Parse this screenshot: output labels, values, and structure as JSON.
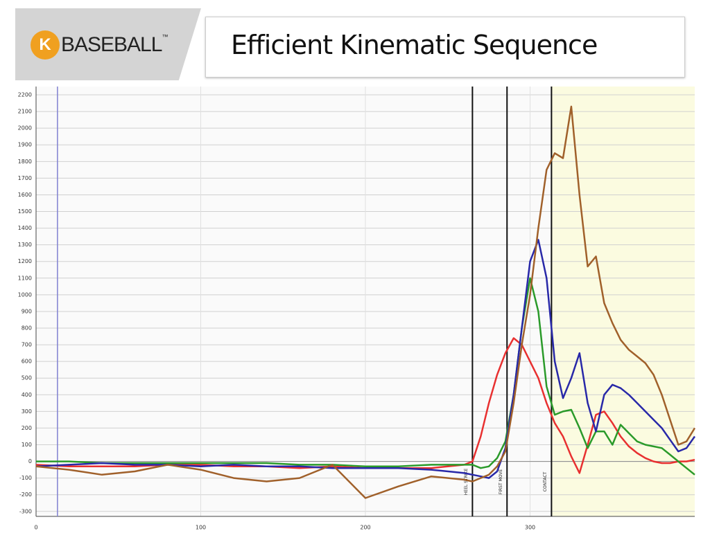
{
  "header": {
    "logo_letter": "K",
    "logo_text": "BASEBALL",
    "logo_mark": "™"
  },
  "chart_data": {
    "type": "line",
    "title": "Efficient Kinematic Sequence",
    "x": [
      0,
      20,
      40,
      60,
      80,
      100,
      120,
      140,
      160,
      180,
      200,
      220,
      240,
      260,
      265,
      270,
      275,
      280,
      285,
      290,
      295,
      300,
      305,
      310,
      315,
      320,
      325,
      330,
      335,
      340,
      345,
      350,
      355,
      360,
      365,
      370,
      375,
      380,
      385,
      390,
      395,
      400
    ],
    "series": [
      {
        "color": "#e83030",
        "values": [
          -20,
          -30,
          -30,
          -30,
          -20,
          -20,
          -30,
          -30,
          -40,
          -30,
          -40,
          -40,
          -40,
          -20,
          0,
          150,
          350,
          520,
          650,
          740,
          700,
          600,
          500,
          350,
          230,
          150,
          30,
          -70,
          100,
          280,
          300,
          230,
          150,
          90,
          50,
          20,
          0,
          -10,
          -10,
          0,
          0,
          10
        ]
      },
      {
        "color": "#2a9a2a",
        "values": [
          0,
          0,
          -10,
          -10,
          -10,
          -10,
          -10,
          -10,
          -20,
          -20,
          -30,
          -30,
          -20,
          -20,
          -20,
          -40,
          -30,
          20,
          120,
          400,
          800,
          1100,
          900,
          450,
          280,
          300,
          310,
          200,
          80,
          180,
          180,
          100,
          220,
          170,
          120,
          100,
          90,
          80,
          40,
          0,
          -40,
          -80
        ]
      },
      {
        "color": "#2828a8",
        "values": [
          -30,
          -20,
          -10,
          -20,
          -20,
          -30,
          -20,
          -30,
          -30,
          -40,
          -40,
          -40,
          -50,
          -70,
          -80,
          -90,
          -100,
          -60,
          80,
          400,
          800,
          1200,
          1330,
          1100,
          600,
          380,
          500,
          650,
          350,
          180,
          400,
          460,
          440,
          400,
          350,
          300,
          250,
          200,
          130,
          60,
          80,
          150
        ]
      },
      {
        "color": "#a0602a",
        "values": [
          -30,
          -50,
          -80,
          -60,
          -20,
          -50,
          -100,
          -120,
          -100,
          -20,
          -220,
          -150,
          -90,
          -110,
          -120,
          -100,
          -80,
          -30,
          60,
          350,
          700,
          1000,
          1400,
          1750,
          1850,
          1820,
          2130,
          1600,
          1170,
          1230,
          950,
          830,
          730,
          670,
          630,
          590,
          520,
          400,
          250,
          100,
          120,
          200
        ]
      }
    ],
    "events": [
      {
        "x": 265,
        "label": "HEEL STRIKE"
      },
      {
        "x": 286,
        "label": "FIRST MOVE"
      },
      {
        "x": 313,
        "label": "CONTACT"
      }
    ],
    "cursor_x": 13,
    "xlim": [
      0,
      400
    ],
    "ylim": [
      -330,
      2250
    ],
    "xticks": [
      0,
      100,
      200,
      300
    ],
    "yticks": [
      -300,
      -200,
      -100,
      0,
      100,
      200,
      300,
      400,
      500,
      600,
      700,
      800,
      900,
      1000,
      1100,
      1200,
      1300,
      1400,
      1500,
      1600,
      1700,
      1800,
      1900,
      2000,
      2100,
      2200
    ],
    "grid": true
  }
}
